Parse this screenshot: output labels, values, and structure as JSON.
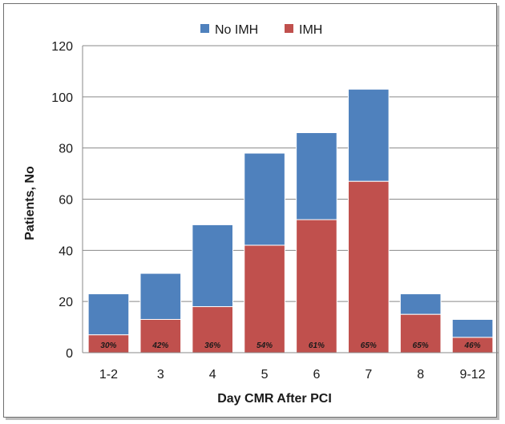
{
  "chart_data": {
    "type": "bar",
    "stacked": true,
    "categories": [
      "1-2",
      "3",
      "4",
      "5",
      "6",
      "7",
      "8",
      "9-12"
    ],
    "series": [
      {
        "name": "IMH",
        "values": [
          7,
          13,
          18,
          42,
          52,
          67,
          15,
          6
        ],
        "color": "#c0504d"
      },
      {
        "name": "No IMH",
        "values": [
          16,
          18,
          32,
          36,
          34,
          36,
          8,
          7
        ],
        "color": "#4f81bd"
      }
    ],
    "bar_labels": [
      "30%",
      "42%",
      "36%",
      "54%",
      "61%",
      "65%",
      "65%",
      "46%"
    ],
    "xlabel": "Day CMR After PCI",
    "ylabel": "Patients, No",
    "ylim": [
      0,
      120
    ],
    "yticks": [
      0,
      20,
      40,
      60,
      80,
      100,
      120
    ],
    "grid": "horizontal",
    "legend": {
      "position": "top",
      "items": [
        {
          "label": "No IMH",
          "color": "#4f81bd"
        },
        {
          "label": "IMH",
          "color": "#c0504d"
        }
      ]
    }
  }
}
